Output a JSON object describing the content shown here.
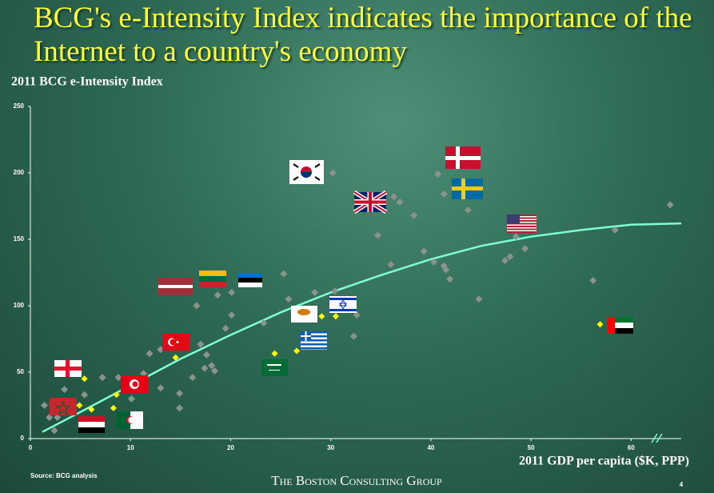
{
  "chart_data": {
    "type": "scatter",
    "title": "BCG's e-Intensity Index indicates the importance of the Internet to a country's economy",
    "y_label": "2011 BCG e-Intensity Index",
    "x_label": "2011 GDP per capita ($K, PPP)",
    "source": "Source: BCG analysis",
    "footer": "The Boston Consulting Group",
    "page_number": "4",
    "xlim": [
      0,
      65
    ],
    "xticks": [
      0,
      10,
      20,
      30,
      40,
      50,
      60
    ],
    "ylim": [
      0,
      250
    ],
    "yticks": [
      0,
      50,
      100,
      150,
      200,
      250
    ],
    "series": [
      {
        "color": "#8c928e",
        "x": [
          1.4,
          1.9,
          2.2,
          2.4,
          2.7,
          3.4,
          3.7,
          5.4,
          7.2,
          8.8,
          10.1,
          11.3,
          11.9,
          13.0,
          13.0,
          14.9,
          14.9,
          16.2,
          16.6,
          17.0,
          17.4,
          17.6,
          18.1,
          18.4,
          18.7,
          19.5,
          20.1,
          20.1,
          23.3,
          25.3,
          25.8,
          28.4,
          30.2,
          30.4,
          32.3,
          32.6,
          34.7,
          36.0,
          36.3,
          36.9,
          38.3,
          39.3,
          40.3,
          40.7,
          41.3,
          41.3,
          41.5,
          41.9,
          43.7,
          44.8,
          47.4,
          47.9,
          48.5,
          49.4,
          56.2,
          58.4,
          63.9
        ],
        "values": [
          25,
          16,
          26,
          6,
          16,
          37,
          22,
          33,
          46,
          46,
          30,
          49,
          64,
          67,
          38,
          34,
          23,
          46,
          100,
          71,
          53,
          63,
          55,
          51,
          108,
          83,
          110,
          93,
          87,
          124,
          105,
          110,
          200,
          111,
          77,
          93,
          153,
          131,
          182,
          178,
          168,
          141,
          133,
          199,
          184,
          130,
          127,
          120,
          172,
          105,
          134,
          137,
          152,
          143,
          119,
          157,
          176
        ]
      },
      {
        "color": "#ffff00",
        "x": [
          5.4,
          4.9,
          6.1,
          8.6,
          8.3,
          14.5,
          24.4,
          26.6,
          29.1,
          30.5,
          56.9
        ],
        "values": [
          45,
          25,
          22,
          33,
          23,
          61,
          64,
          66,
          92,
          92,
          86
        ]
      }
    ],
    "trend": {
      "color": "#7fffd4",
      "x": [
        1.2,
        5,
        10,
        15,
        20,
        25,
        30,
        35,
        40,
        45,
        50,
        55,
        60,
        65
      ],
      "values": [
        5,
        20,
        40,
        60,
        78,
        95,
        110,
        123,
        135,
        145,
        152,
        157,
        161,
        162
      ]
    }
  }
}
